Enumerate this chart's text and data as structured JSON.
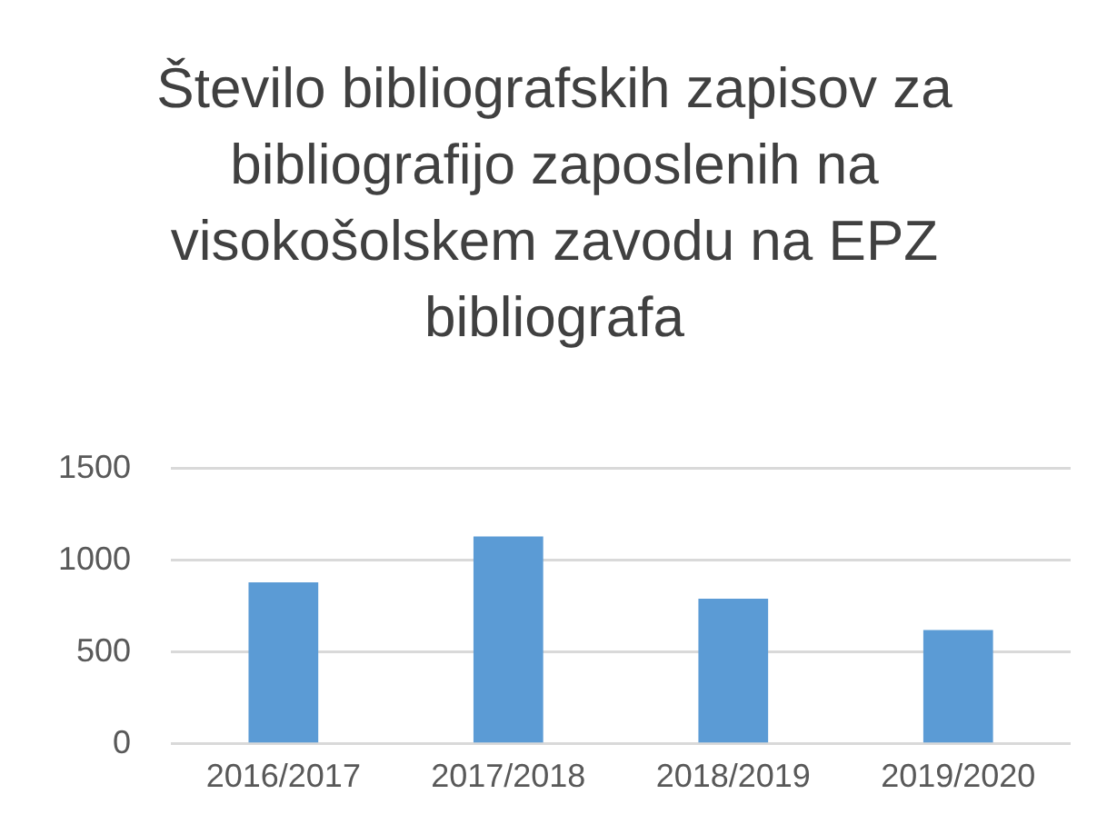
{
  "chart_data": {
    "type": "bar",
    "title": "Število bibliografskih zapisov za bibliografijo zaposlenih na visokošolskem zavodu na EPZ bibliografa",
    "categories": [
      "2016/2017",
      "2017/2018",
      "2018/2019",
      "2019/2020"
    ],
    "values": [
      880,
      1130,
      790,
      620
    ],
    "color": "#5b9bd5",
    "ylim": [
      0,
      1500
    ],
    "yticks": [
      0,
      500,
      1000,
      1500
    ],
    "grid": "y",
    "legend": false
  }
}
